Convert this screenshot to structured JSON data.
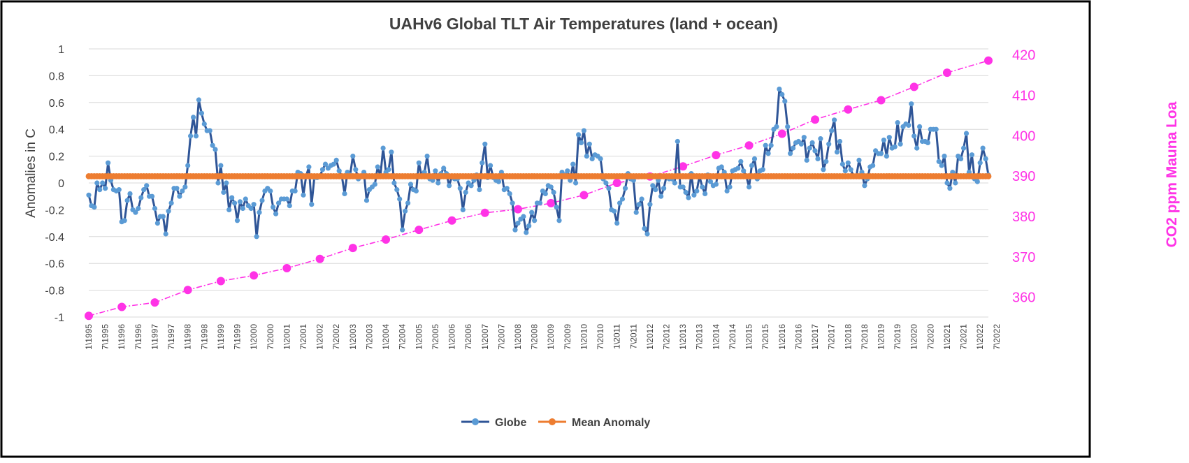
{
  "chart_data": {
    "type": "line",
    "title": "UAHv6 Global TLT Air Temperatures (land + ocean)",
    "ylabel": "Anomalies in C",
    "y2label": "CO2 ppm Mauna Loa",
    "ylim": [
      -1,
      1
    ],
    "y_ticks": [
      "1",
      "0.8",
      "0.6",
      "0.4",
      "0.2",
      "0",
      "-0.2",
      "-0.4",
      "-0.6",
      "-0.8",
      "-1"
    ],
    "y2lim": [
      355.1,
      421.5
    ],
    "y2_ticks": [
      "420",
      "410",
      "400",
      "390",
      "380",
      "370",
      "360"
    ],
    "x_tick_labels": [
      "1\\1995",
      "7\\1995",
      "1\\1996",
      "7\\1996",
      "1\\1997",
      "7\\1997",
      "1\\1998",
      "7\\1998",
      "1\\1999",
      "7\\1999",
      "1\\2000",
      "7\\2000",
      "1\\2001",
      "7\\2001",
      "1\\2002",
      "7\\2002",
      "1\\2003",
      "7\\2003",
      "1\\2004",
      "7\\2004",
      "1\\2005",
      "7\\2005",
      "1\\2006",
      "7\\2006",
      "1\\2007",
      "7\\2007",
      "1\\2008",
      "7\\2008",
      "1\\2009",
      "7\\2009",
      "1\\2010",
      "7\\2010",
      "1\\2011",
      "7\\2011",
      "1\\2012",
      "7\\2012",
      "1\\2013",
      "7\\2013",
      "1\\2014",
      "7\\2014",
      "1\\2015",
      "7\\2015",
      "1\\2016",
      "7\\2016",
      "1\\2017",
      "7\\2017",
      "1\\2018",
      "7\\2018",
      "1\\2019",
      "7\\2019",
      "1\\2020",
      "7\\2020",
      "1\\2021",
      "7\\2021",
      "1\\2022",
      "7\\2022"
    ],
    "grid": true,
    "legend_position": "bottom-center",
    "globe_keyframes": [
      [
        0,
        -0.09
      ],
      [
        1,
        -0.17
      ],
      [
        2,
        -0.18
      ],
      [
        3,
        0.0
      ],
      [
        4,
        -0.05
      ],
      [
        5,
        0.0
      ],
      [
        6,
        -0.04
      ],
      [
        7,
        0.15
      ],
      [
        8,
        0.02
      ],
      [
        9,
        -0.05
      ],
      [
        10,
        -0.06
      ],
      [
        11,
        -0.05
      ],
      [
        12,
        -0.29
      ],
      [
        13,
        -0.28
      ],
      [
        14,
        -0.13
      ],
      [
        15,
        -0.08
      ],
      [
        16,
        -0.2
      ],
      [
        17,
        -0.22
      ],
      [
        18,
        -0.19
      ],
      [
        19,
        -0.11
      ],
      [
        20,
        -0.05
      ],
      [
        21,
        -0.02
      ],
      [
        22,
        -0.1
      ],
      [
        23,
        -0.1
      ],
      [
        24,
        -0.19
      ],
      [
        25,
        -0.3
      ],
      [
        26,
        -0.25
      ],
      [
        27,
        -0.25
      ],
      [
        28,
        -0.38
      ],
      [
        29,
        -0.21
      ],
      [
        30,
        -0.15
      ],
      [
        31,
        -0.04
      ],
      [
        32,
        -0.04
      ],
      [
        33,
        -0.1
      ],
      [
        34,
        -0.06
      ],
      [
        35,
        -0.03
      ],
      [
        36,
        0.13
      ],
      [
        37,
        0.35
      ],
      [
        38,
        0.49
      ],
      [
        39,
        0.35
      ],
      [
        40,
        0.62
      ],
      [
        41,
        0.52
      ],
      [
        42,
        0.44
      ],
      [
        43,
        0.39
      ],
      [
        44,
        0.39
      ],
      [
        45,
        0.28
      ],
      [
        46,
        0.25
      ],
      [
        47,
        0.0
      ],
      [
        48,
        0.13
      ],
      [
        49,
        -0.07
      ],
      [
        50,
        0.0
      ],
      [
        51,
        -0.2
      ],
      [
        52,
        -0.11
      ],
      [
        53,
        -0.15
      ],
      [
        54,
        -0.28
      ],
      [
        55,
        -0.14
      ],
      [
        56,
        -0.19
      ],
      [
        57,
        -0.12
      ],
      [
        58,
        -0.17
      ],
      [
        59,
        -0.19
      ],
      [
        60,
        -0.16
      ],
      [
        61,
        -0.4
      ],
      [
        62,
        -0.22
      ],
      [
        63,
        -0.13
      ],
      [
        64,
        -0.06
      ],
      [
        65,
        -0.04
      ],
      [
        66,
        -0.06
      ],
      [
        67,
        -0.18
      ],
      [
        68,
        -0.23
      ],
      [
        69,
        -0.15
      ],
      [
        70,
        -0.12
      ],
      [
        71,
        -0.12
      ],
      [
        72,
        -0.12
      ],
      [
        73,
        -0.17
      ],
      [
        74,
        -0.06
      ],
      [
        75,
        -0.06
      ],
      [
        76,
        0.08
      ],
      [
        77,
        0.07
      ],
      [
        78,
        -0.09
      ],
      [
        79,
        0.05
      ],
      [
        80,
        0.12
      ],
      [
        81,
        -0.16
      ],
      [
        82,
        0.04
      ],
      [
        83,
        0.04
      ],
      [
        84,
        0.05
      ],
      [
        85,
        0.1
      ],
      [
        86,
        0.14
      ],
      [
        87,
        0.11
      ],
      [
        88,
        0.13
      ],
      [
        89,
        0.14
      ],
      [
        90,
        0.17
      ],
      [
        91,
        0.09
      ],
      [
        92,
        0.05
      ],
      [
        93,
        -0.08
      ],
      [
        94,
        0.08
      ],
      [
        95,
        0.06
      ],
      [
        96,
        0.2
      ],
      [
        97,
        0.1
      ],
      [
        98,
        0.03
      ],
      [
        99,
        0.05
      ],
      [
        100,
        0.08
      ],
      [
        101,
        -0.13
      ],
      [
        102,
        -0.05
      ],
      [
        103,
        -0.03
      ],
      [
        104,
        -0.01
      ],
      [
        105,
        0.12
      ],
      [
        106,
        0.05
      ],
      [
        107,
        0.26
      ],
      [
        108,
        0.08
      ],
      [
        109,
        0.1
      ],
      [
        110,
        0.23
      ],
      [
        111,
        0.0
      ],
      [
        112,
        -0.05
      ],
      [
        113,
        -0.12
      ],
      [
        114,
        -0.35
      ],
      [
        115,
        -0.21
      ],
      [
        116,
        -0.15
      ],
      [
        117,
        -0.01
      ],
      [
        118,
        -0.05
      ],
      [
        119,
        -0.06
      ],
      [
        120,
        0.15
      ],
      [
        121,
        0.05
      ],
      [
        122,
        0.08
      ],
      [
        123,
        0.2
      ],
      [
        124,
        0.03
      ],
      [
        125,
        0.02
      ],
      [
        126,
        0.09
      ],
      [
        127,
        0.0
      ],
      [
        128,
        0.07
      ],
      [
        129,
        0.11
      ],
      [
        130,
        0.07
      ],
      [
        131,
        -0.02
      ],
      [
        132,
        0.05
      ],
      [
        133,
        0.03
      ],
      [
        134,
        0.03
      ],
      [
        135,
        -0.04
      ],
      [
        136,
        -0.2
      ],
      [
        137,
        -0.07
      ],
      [
        138,
        0.0
      ],
      [
        139,
        -0.02
      ],
      [
        140,
        0.02
      ],
      [
        141,
        0.06
      ],
      [
        142,
        -0.05
      ],
      [
        143,
        0.15
      ],
      [
        144,
        0.29
      ],
      [
        145,
        0.04
      ],
      [
        146,
        0.13
      ],
      [
        147,
        0.04
      ],
      [
        148,
        0.02
      ],
      [
        149,
        0.01
      ],
      [
        150,
        0.08
      ],
      [
        151,
        -0.05
      ],
      [
        152,
        -0.04
      ],
      [
        153,
        -0.08
      ],
      [
        154,
        -0.15
      ],
      [
        155,
        -0.35
      ],
      [
        156,
        -0.3
      ],
      [
        157,
        -0.27
      ],
      [
        158,
        -0.25
      ],
      [
        159,
        -0.37
      ],
      [
        160,
        -0.32
      ],
      [
        161,
        -0.22
      ],
      [
        162,
        -0.28
      ],
      [
        163,
        -0.15
      ],
      [
        164,
        -0.15
      ],
      [
        165,
        -0.06
      ],
      [
        166,
        -0.08
      ],
      [
        167,
        -0.02
      ],
      [
        168,
        -0.03
      ],
      [
        169,
        -0.07
      ],
      [
        170,
        -0.18
      ],
      [
        171,
        -0.28
      ],
      [
        172,
        0.08
      ],
      [
        173,
        0.06
      ],
      [
        174,
        0.09
      ],
      [
        175,
        0.02
      ],
      [
        176,
        0.14
      ],
      [
        177,
        -0.0
      ],
      [
        178,
        0.36
      ],
      [
        179,
        0.3
      ],
      [
        180,
        0.39
      ],
      [
        181,
        0.2
      ],
      [
        182,
        0.29
      ],
      [
        183,
        0.18
      ],
      [
        184,
        0.21
      ],
      [
        185,
        0.2
      ],
      [
        186,
        0.18
      ],
      [
        187,
        0.03
      ],
      [
        188,
        -0.0
      ],
      [
        189,
        -0.04
      ],
      [
        190,
        -0.2
      ],
      [
        191,
        -0.21
      ],
      [
        192,
        -0.3
      ],
      [
        193,
        -0.15
      ],
      [
        194,
        -0.12
      ],
      [
        195,
        -0.04
      ],
      [
        196,
        0.07
      ],
      [
        197,
        0.03
      ],
      [
        198,
        0.02
      ],
      [
        199,
        -0.22
      ],
      [
        200,
        -0.16
      ],
      [
        201,
        -0.12
      ],
      [
        202,
        -0.34
      ],
      [
        203,
        -0.38
      ],
      [
        204,
        -0.16
      ],
      [
        205,
        -0.02
      ],
      [
        206,
        -0.05
      ],
      [
        207,
        0.02
      ],
      [
        208,
        -0.1
      ],
      [
        209,
        -0.04
      ],
      [
        210,
        0.05
      ],
      [
        211,
        0.03
      ],
      [
        212,
        0.03
      ],
      [
        213,
        0.0
      ],
      [
        214,
        0.31
      ],
      [
        215,
        -0.03
      ],
      [
        216,
        -0.03
      ],
      [
        217,
        -0.07
      ],
      [
        218,
        -0.11
      ],
      [
        219,
        0.07
      ],
      [
        220,
        -0.09
      ],
      [
        221,
        -0.06
      ],
      [
        222,
        0.05
      ],
      [
        223,
        -0.03
      ],
      [
        224,
        -0.08
      ],
      [
        225,
        0.06
      ],
      [
        226,
        0.01
      ],
      [
        227,
        -0.02
      ],
      [
        228,
        -0.01
      ],
      [
        229,
        0.11
      ],
      [
        230,
        0.12
      ],
      [
        231,
        0.08
      ],
      [
        232,
        -0.06
      ],
      [
        233,
        -0.03
      ],
      [
        234,
        0.09
      ],
      [
        235,
        0.1
      ],
      [
        236,
        0.11
      ],
      [
        237,
        0.16
      ],
      [
        238,
        0.09
      ],
      [
        239,
        0.05
      ],
      [
        240,
        -0.03
      ],
      [
        241,
        0.13
      ],
      [
        242,
        0.18
      ],
      [
        243,
        0.03
      ],
      [
        244,
        0.09
      ],
      [
        245,
        0.1
      ],
      [
        246,
        0.28
      ],
      [
        247,
        0.22
      ],
      [
        248,
        0.28
      ],
      [
        249,
        0.4
      ],
      [
        250,
        0.42
      ],
      [
        251,
        0.7
      ],
      [
        252,
        0.66
      ],
      [
        253,
        0.61
      ],
      [
        254,
        0.42
      ],
      [
        255,
        0.22
      ],
      [
        256,
        0.26
      ],
      [
        257,
        0.3
      ],
      [
        258,
        0.31
      ],
      [
        259,
        0.29
      ],
      [
        260,
        0.34
      ],
      [
        261,
        0.17
      ],
      [
        262,
        0.26
      ],
      [
        263,
        0.3
      ],
      [
        264,
        0.24
      ],
      [
        265,
        0.18
      ],
      [
        266,
        0.33
      ],
      [
        267,
        0.1
      ],
      [
        268,
        0.16
      ],
      [
        269,
        0.29
      ],
      [
        270,
        0.39
      ],
      [
        271,
        0.47
      ],
      [
        272,
        0.23
      ],
      [
        273,
        0.31
      ],
      [
        274,
        0.14
      ],
      [
        275,
        0.09
      ],
      [
        276,
        0.15
      ],
      [
        277,
        0.1
      ],
      [
        278,
        0.05
      ],
      [
        279,
        0.05
      ],
      [
        280,
        0.17
      ],
      [
        281,
        0.08
      ],
      [
        282,
        -0.02
      ],
      [
        283,
        0.03
      ],
      [
        284,
        0.12
      ],
      [
        285,
        0.13
      ],
      [
        286,
        0.24
      ],
      [
        287,
        0.22
      ],
      [
        288,
        0.22
      ],
      [
        289,
        0.32
      ],
      [
        290,
        0.2
      ],
      [
        291,
        0.34
      ],
      [
        292,
        0.26
      ],
      [
        293,
        0.27
      ],
      [
        294,
        0.45
      ],
      [
        295,
        0.29
      ],
      [
        296,
        0.42
      ],
      [
        297,
        0.44
      ],
      [
        298,
        0.43
      ],
      [
        299,
        0.59
      ],
      [
        300,
        0.35
      ],
      [
        301,
        0.26
      ],
      [
        302,
        0.42
      ],
      [
        303,
        0.31
      ],
      [
        304,
        0.31
      ],
      [
        305,
        0.3
      ],
      [
        306,
        0.4
      ],
      [
        307,
        0.4
      ],
      [
        308,
        0.4
      ],
      [
        309,
        0.16
      ],
      [
        310,
        0.13
      ],
      [
        311,
        0.2
      ],
      [
        312,
        0.0
      ],
      [
        313,
        -0.04
      ],
      [
        314,
        0.08
      ],
      [
        315,
        0.0
      ],
      [
        316,
        0.2
      ],
      [
        317,
        0.18
      ],
      [
        318,
        0.26
      ],
      [
        319,
        0.37
      ],
      [
        320,
        0.08
      ],
      [
        321,
        0.21
      ],
      [
        322,
        0.03
      ],
      [
        323,
        0.01
      ],
      [
        324,
        0.15
      ],
      [
        325,
        0.26
      ],
      [
        326,
        0.18
      ],
      [
        327,
        0.06
      ]
    ],
    "mean_anomaly": 0.05,
    "co2_points": [
      [
        0,
        355.4
      ],
      [
        12,
        357.6
      ],
      [
        24,
        358.7
      ],
      [
        36,
        361.8
      ],
      [
        48,
        364.0
      ],
      [
        60,
        365.4
      ],
      [
        72,
        367.2
      ],
      [
        84,
        369.5
      ],
      [
        96,
        372.2
      ],
      [
        108,
        374.3
      ],
      [
        120,
        376.7
      ],
      [
        132,
        379.0
      ],
      [
        144,
        380.9
      ],
      [
        156,
        381.8
      ],
      [
        168,
        383.3
      ],
      [
        180,
        385.3
      ],
      [
        192,
        388.3
      ],
      [
        204,
        389.9
      ],
      [
        216,
        392.4
      ],
      [
        228,
        395.2
      ],
      [
        240,
        397.6
      ],
      [
        252,
        400.5
      ],
      [
        264,
        404.0
      ],
      [
        276,
        406.5
      ],
      [
        288,
        408.8
      ],
      [
        300,
        412.1
      ],
      [
        312,
        415.6
      ],
      [
        327,
        418.6
      ]
    ],
    "series": [
      {
        "name": "Globe",
        "color": "#2f5597",
        "marker_color": "#5b9bd5"
      },
      {
        "name": "Mean Anomaly",
        "color": "#ed7d31"
      },
      {
        "name": "CO2 ppm Mauna Loa",
        "color": "#ff33e6"
      }
    ]
  }
}
